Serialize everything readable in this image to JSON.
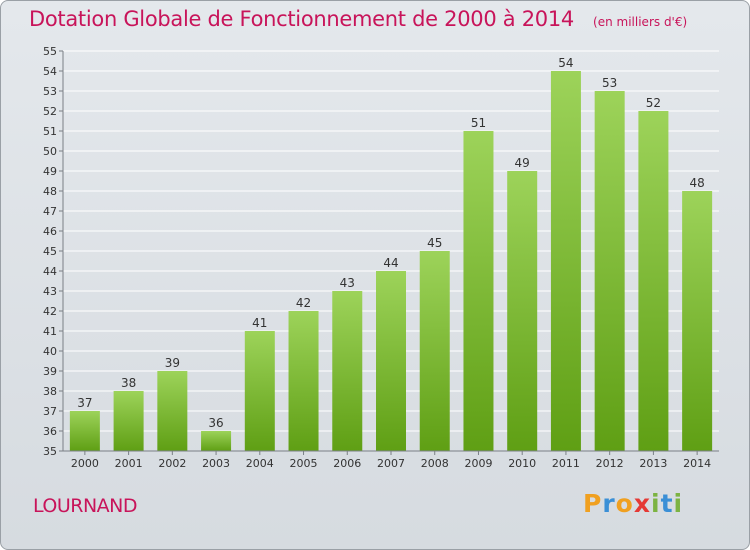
{
  "title": "Dotation Globale de Fonctionnement de 2000 à 2014",
  "unit": "(en milliers d'€)",
  "commune": "LOURNAND",
  "logo_text": "Proxiti",
  "colors": {
    "title": "#c8145a",
    "bar_top": "#9dd35a",
    "bar_bottom": "#5f9f14",
    "grid": "#ffffff",
    "axis": "#7a7f85",
    "label": "#333333"
  },
  "chart_data": {
    "type": "bar",
    "categories": [
      "2000",
      "2001",
      "2002",
      "2003",
      "2004",
      "2005",
      "2006",
      "2007",
      "2008",
      "2009",
      "2010",
      "2011",
      "2012",
      "2013",
      "2014"
    ],
    "values": [
      37,
      38,
      39,
      36,
      41,
      42,
      43,
      44,
      45,
      51,
      49,
      54,
      53,
      52,
      48
    ],
    "ylim": [
      35,
      55
    ],
    "yticks": [
      35,
      36,
      37,
      38,
      39,
      40,
      41,
      42,
      43,
      44,
      45,
      46,
      47,
      48,
      49,
      50,
      51,
      52,
      53,
      54,
      55
    ],
    "grid": true,
    "data_labels": true
  }
}
